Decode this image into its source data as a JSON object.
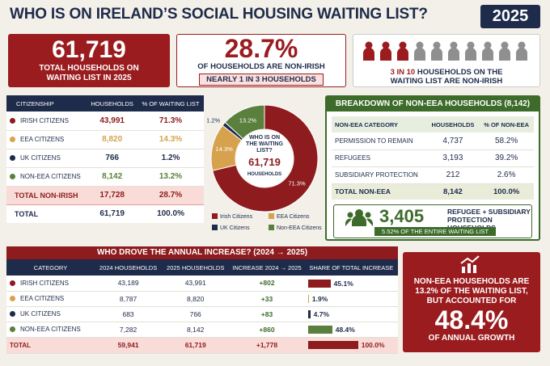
{
  "header": {
    "title": "WHO IS ON IRELAND’S SOCIAL HOUSING WAITING LIST?",
    "year": "2025"
  },
  "stats": {
    "total": {
      "value": "61,719",
      "label": "TOTAL HOUSEHOLDS ON WAITING LIST IN 2025"
    },
    "non_irish": {
      "value": "28.7%",
      "label": "OF HOUSEHOLDS ARE NON-IRISH",
      "note": "NEARLY 1 IN 3 HOUSEHOLDS"
    },
    "ratio": {
      "highlight": "3 IN 10",
      "label": "HOUSEHOLDS ON THE WAITING LIST ARE NON-IRISH"
    }
  },
  "citizenship": {
    "headers": [
      "CITIZENSHIP",
      "HOUSEHOLDS",
      "% OF WAITING LIST"
    ],
    "rows": [
      {
        "name": "IRISH CITIZENS",
        "households": "43,991",
        "share": 71.3,
        "share_label": "71.3%",
        "color": "#8e1b1e"
      },
      {
        "name": "EEA CITIZENS",
        "households": "8,820",
        "share": 14.3,
        "share_label": "14.3%",
        "color": "#d6a24e"
      },
      {
        "name": "UK CITIZENS",
        "households": "766",
        "share": 1.2,
        "share_label": "1.2%",
        "color": "#1e2b4a"
      },
      {
        "name": "NON-EEA CITIZENS",
        "households": "8,142",
        "share": 13.2,
        "share_label": "13.2%",
        "color": "#5b7f3c"
      }
    ],
    "subtotal": {
      "name": "TOTAL NON-IRISH",
      "households": "17,728",
      "share_label": "28.7%"
    },
    "total": {
      "name": "TOTAL",
      "households": "61,719",
      "share_label": "100.0%"
    }
  },
  "donut": {
    "center": [
      "WHO IS ON THE WAITING LIST?",
      "61,719",
      "HOUSEHOLDS"
    ],
    "legend": [
      "Irish Citizens",
      "EEA Citizens",
      "UK Citizens",
      "Non-EEA Citizens"
    ]
  },
  "non_eea": {
    "title": "BREAKDOWN OF NON-EEA HOUSEHOLDS (8,142)",
    "headers": [
      "NON-EEA CATEGORY",
      "HOUSEHOLDS",
      "% OF NON-EEA"
    ],
    "rows": [
      [
        "PERMISSION TO REMAIN",
        "4,737",
        "58.2%"
      ],
      [
        "REFUGEES",
        "3,193",
        "39.2%"
      ],
      [
        "SUBSIDIARY PROTECTION",
        "212",
        "2.6%"
      ]
    ],
    "total": [
      "TOTAL NON-EEA",
      "8,142",
      "100.0%"
    ],
    "highlight": {
      "value": "3,405",
      "label": "REFUGEE + SUBSIDIARY PROTECTION HOUSEHOLDS",
      "note": "5.52% OF THE ENTIRE WAITING LIST"
    }
  },
  "increase": {
    "title": "WHO DROVE THE ANNUAL INCREASE? (2024 → 2025)",
    "headers": [
      "CATEGORY",
      "2024 HOUSEHOLDS",
      "2025 HOUSEHOLDS",
      "INCREASE 2024 → 2025",
      "SHARE OF TOTAL INCREASE"
    ],
    "rows": [
      {
        "name": "IRISH CITIZENS",
        "h2024": "43,189",
        "h2025": "43,991",
        "increase": "+802",
        "share": 45.1,
        "share_label": "45.1%",
        "color": "#8e1b1e"
      },
      {
        "name": "EEA CITIZENS",
        "h2024": "8,787",
        "h2025": "8,820",
        "increase": "+33",
        "share": 1.9,
        "share_label": "1.9%",
        "color": "#d6a24e"
      },
      {
        "name": "UK CITIZENS",
        "h2024": "683",
        "h2025": "766",
        "increase": "+83",
        "share": 4.7,
        "share_label": "4.7%",
        "color": "#1e2b4a"
      },
      {
        "name": "NON-EEA CITIZENS",
        "h2024": "7,282",
        "h2025": "8,142",
        "increase": "+860",
        "share": 48.4,
        "share_label": "48.4%",
        "color": "#5b7f3c"
      }
    ],
    "total": {
      "name": "TOTAL",
      "h2024": "59,941",
      "h2025": "61,719",
      "increase": "+1,778",
      "share": 100,
      "share_label": "100.0%",
      "color": "#8e1b1e"
    }
  },
  "callout": {
    "text": "NON-EEA HOUSEHOLDS ARE 13.2% OF THE WAITING LIST, BUT ACCOUNTED FOR",
    "value": "48.4%",
    "note": "OF ANNUAL GROWTH"
  }
}
